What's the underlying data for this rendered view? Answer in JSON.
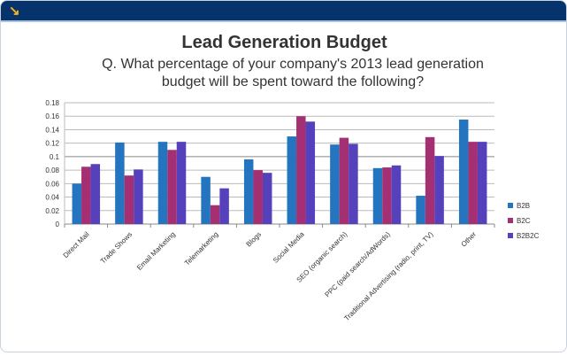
{
  "header": {
    "icon": "arrow-down-right-icon",
    "accent": "#f4b324",
    "bg": "#06336b"
  },
  "chart_data": {
    "type": "bar",
    "title": "Lead Generation Budget",
    "subtitle": "Q. What percentage of your company's 2013 lead generation budget will be spent toward the following?",
    "categories": [
      "Direct Mail",
      "Trade Shows",
      "Email Marketing",
      "Telemarketing",
      "Blogs",
      "Social Media",
      "SEO (organic search)",
      "PPC (paid search/AdWords)",
      "Traditional Advertising (radio, print, TV)",
      "Other"
    ],
    "series": [
      {
        "name": "B2B",
        "color": "#2574c0",
        "values": [
          0.06,
          0.121,
          0.122,
          0.07,
          0.096,
          0.13,
          0.118,
          0.083,
          0.042,
          0.155
        ]
      },
      {
        "name": "B2C",
        "color": "#a52f73",
        "values": [
          0.085,
          0.072,
          0.11,
          0.028,
          0.08,
          0.16,
          0.128,
          0.084,
          0.129,
          0.122
        ]
      },
      {
        "name": "B2B2C",
        "color": "#5441bb",
        "values": [
          0.089,
          0.081,
          0.122,
          0.053,
          0.076,
          0.152,
          0.119,
          0.087,
          0.101,
          0.122
        ]
      }
    ],
    "yticks": [
      "0",
      "0.02",
      "0.04",
      "0.06",
      "0.08",
      "0.1",
      "0.12",
      "0.14",
      "0.16",
      "0.18"
    ],
    "ylim": [
      0,
      0.18
    ],
    "grid": true,
    "legend": "right"
  }
}
